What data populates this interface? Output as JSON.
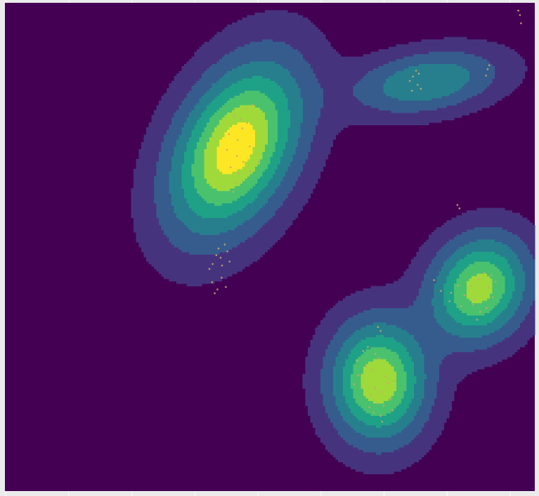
{
  "chart_data": {
    "type": "heatmap",
    "subtype": "filled-density-contour-with-scatter",
    "title": "",
    "xlabel": "",
    "ylabel": "",
    "xlim": [
      0,
      100
    ],
    "ylim": [
      0,
      100
    ],
    "grid": true,
    "legend": "none",
    "colors": {
      "panel_background": "#ebebeb",
      "levels": [
        "#440154",
        "#46337e",
        "#365c8d",
        "#277f8e",
        "#1fa187",
        "#4ac16d",
        "#9fda3a",
        "#fde725"
      ],
      "points": "#c9a96a"
    },
    "density_components": [
      {
        "name": "",
        "mx": 43.5,
        "my": 70.3,
        "sx": 8.0,
        "sy": 11.5,
        "rho": 0.4,
        "w": 1.0
      },
      {
        "name": "",
        "mx": 79.5,
        "my": 83.8,
        "sx": 9.0,
        "sy": 4.3,
        "rho": 0.3,
        "w": 0.45
      },
      {
        "name": "",
        "mx": 70.5,
        "my": 22.5,
        "sx": 5.9,
        "sy": 8.0,
        "rho": 0.0,
        "w": 0.88
      },
      {
        "name": "",
        "mx": 89.5,
        "my": 41.5,
        "sx": 6.0,
        "sy": 7.0,
        "rho": 0.15,
        "w": 0.82
      }
    ],
    "points": [
      [
        38.6,
        45.5
      ],
      [
        39.2,
        46.5
      ],
      [
        41.0,
        46.2
      ],
      [
        40.7,
        47.8
      ],
      [
        39.9,
        48.3
      ],
      [
        40.3,
        49.7
      ],
      [
        41.5,
        50.5
      ],
      [
        42.0,
        49.1
      ],
      [
        42.4,
        47.0
      ],
      [
        43.1,
        61.3
      ],
      [
        43.5,
        63.2
      ],
      [
        44.1,
        65.1
      ],
      [
        42.6,
        66.3
      ],
      [
        45.0,
        67.4
      ],
      [
        43.8,
        68.6
      ],
      [
        41.9,
        69.9
      ],
      [
        46.2,
        70.6
      ],
      [
        43.9,
        71.9
      ],
      [
        42.3,
        73.1
      ],
      [
        44.8,
        74.3
      ],
      [
        45.7,
        75.4
      ],
      [
        44.5,
        76.1
      ],
      [
        43.3,
        76.9
      ],
      [
        45.5,
        78.3
      ],
      [
        46.7,
        79.1
      ],
      [
        47.9,
        67.4
      ],
      [
        40.1,
        41.3
      ],
      [
        39.6,
        40.5
      ],
      [
        39.1,
        42.8
      ],
      [
        41.7,
        41.8
      ],
      [
        40.9,
        43.7
      ],
      [
        46.3,
        65.4
      ],
      [
        77.6,
        86.1
      ],
      [
        77.0,
        84.9
      ],
      [
        76.4,
        84.0
      ],
      [
        77.9,
        83.2
      ],
      [
        78.5,
        82.4
      ],
      [
        76.8,
        82.0
      ],
      [
        78.1,
        85.5
      ],
      [
        91.1,
        86.4
      ],
      [
        90.8,
        85.1
      ],
      [
        91.4,
        87.2
      ],
      [
        96.9,
        98.4
      ],
      [
        97.2,
        97.5
      ],
      [
        97.4,
        95.8
      ],
      [
        85.4,
        58.6
      ],
      [
        85.8,
        57.9
      ],
      [
        81.0,
        43.2
      ],
      [
        82.3,
        41.0
      ],
      [
        84.2,
        40.6
      ],
      [
        85.5,
        42.1
      ],
      [
        86.7,
        40.1
      ],
      [
        87.9,
        42.0
      ],
      [
        88.6,
        39.2
      ],
      [
        89.4,
        43.4
      ],
      [
        90.5,
        44.7
      ],
      [
        91.3,
        41.8
      ],
      [
        92.1,
        39.7
      ],
      [
        90.9,
        37.5
      ],
      [
        89.7,
        36.7
      ],
      [
        89.1,
        35.1
      ],
      [
        88.4,
        38.2
      ],
      [
        86.1,
        37.9
      ],
      [
        83.9,
        38.9
      ],
      [
        91.8,
        44.2
      ],
      [
        92.6,
        42.9
      ],
      [
        70.4,
        33.6
      ],
      [
        70.9,
        32.8
      ],
      [
        68.5,
        29.5
      ],
      [
        67.6,
        28.7
      ],
      [
        69.9,
        28.1
      ],
      [
        70.6,
        27.2
      ],
      [
        68.2,
        25.5
      ],
      [
        66.7,
        23.7
      ],
      [
        69.3,
        24.9
      ],
      [
        71.8,
        23.5
      ],
      [
        72.4,
        22.1
      ],
      [
        71.0,
        20.3
      ],
      [
        69.0,
        19.6
      ],
      [
        70.2,
        18.0
      ],
      [
        71.5,
        17.5
      ],
      [
        69.6,
        16.1
      ],
      [
        70.9,
        15.4
      ],
      [
        72.8,
        18.8
      ],
      [
        73.4,
        22.6
      ],
      [
        67.3,
        21.4
      ],
      [
        66.5,
        26.8
      ],
      [
        71.2,
        14.2
      ],
      [
        69.8,
        21.0
      ],
      [
        68.8,
        17.2
      ],
      [
        65.9,
        21.9
      ],
      [
        73.1,
        16.5
      ]
    ]
  }
}
